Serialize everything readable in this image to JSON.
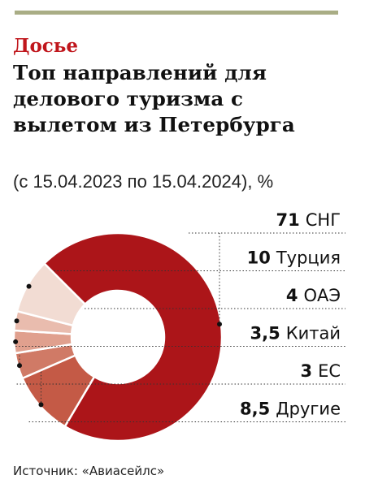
{
  "header": {
    "kicker": "Досье",
    "title": "Топ направлений для делового туризма с вылетом из Петербурга",
    "subtitle": "(с 15.04.2023 по 15.04.2024), %"
  },
  "chart_data": {
    "type": "pie",
    "variant": "donut",
    "unit": "%",
    "categories": [
      "СНГ",
      "Турция",
      "ОАЭ",
      "Китай",
      "ЕС",
      "Другие"
    ],
    "values": [
      71,
      10,
      4,
      3.5,
      3,
      8.5
    ],
    "value_labels": [
      "71",
      "10",
      "4",
      "3,5",
      "3",
      "8,5"
    ],
    "colors": [
      "#ac1519",
      "#c45a46",
      "#d07a66",
      "#e0a08e",
      "#e9bcae",
      "#f2dcd3"
    ],
    "legend_position": "right"
  },
  "footer": {
    "source": "Источник: «Авиасейлс»"
  }
}
